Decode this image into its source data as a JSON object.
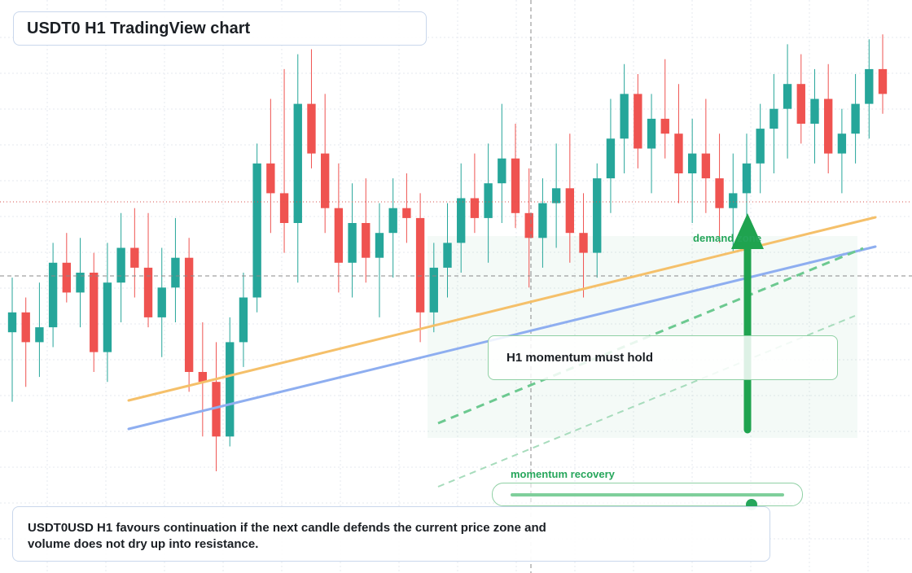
{
  "title": "USDT0 H1 TradingView chart",
  "annotations": {
    "demand_zone_label": "demand zone",
    "momentum_note": "H1 momentum must hold",
    "momentum_slider_label": "momentum recovery",
    "momentum_slider_value": 0.88
  },
  "caption": "USDT0USD H1 favours continuation if the next candle defends the current price zone and volume does not dry up into resistance.",
  "colors": {
    "up": "#26a69a",
    "down": "#ef5350",
    "accent_green": "#26a65b",
    "trend_orange": "#f5c06a",
    "trend_blue": "#8eaef0",
    "price_line": "#d9534f"
  },
  "chart_data": {
    "type": "candlestick",
    "symbol": "USDT0USD",
    "timeframe": "H1",
    "grid": true,
    "y_axis_labels": "none",
    "x_axis_labels": "none",
    "candles_description": "OHLC values are unlabeled; values expressed on a relative 0-100 scale",
    "candles": [
      {
        "o": 38,
        "h": 49,
        "l": 24,
        "c": 42
      },
      {
        "o": 42,
        "h": 45,
        "l": 27,
        "c": 36
      },
      {
        "o": 36,
        "h": 48,
        "l": 29,
        "c": 39
      },
      {
        "o": 39,
        "h": 56,
        "l": 35,
        "c": 52
      },
      {
        "o": 52,
        "h": 58,
        "l": 44,
        "c": 46
      },
      {
        "o": 46,
        "h": 57,
        "l": 39,
        "c": 50
      },
      {
        "o": 50,
        "h": 54,
        "l": 30,
        "c": 34
      },
      {
        "o": 34,
        "h": 56,
        "l": 28,
        "c": 48
      },
      {
        "o": 48,
        "h": 62,
        "l": 40,
        "c": 55
      },
      {
        "o": 55,
        "h": 63,
        "l": 45,
        "c": 51
      },
      {
        "o": 51,
        "h": 62,
        "l": 39,
        "c": 41
      },
      {
        "o": 41,
        "h": 55,
        "l": 33,
        "c": 47
      },
      {
        "o": 47,
        "h": 61,
        "l": 40,
        "c": 53
      },
      {
        "o": 53,
        "h": 57,
        "l": 26,
        "c": 30
      },
      {
        "o": 30,
        "h": 40,
        "l": 17,
        "c": 28
      },
      {
        "o": 28,
        "h": 36,
        "l": 10,
        "c": 17
      },
      {
        "o": 17,
        "h": 41,
        "l": 15,
        "c": 36
      },
      {
        "o": 36,
        "h": 50,
        "l": 31,
        "c": 45
      },
      {
        "o": 45,
        "h": 76,
        "l": 42,
        "c": 72
      },
      {
        "o": 72,
        "h": 85,
        "l": 58,
        "c": 66
      },
      {
        "o": 66,
        "h": 91,
        "l": 54,
        "c": 60
      },
      {
        "o": 60,
        "h": 94,
        "l": 48,
        "c": 84
      },
      {
        "o": 84,
        "h": 95,
        "l": 71,
        "c": 74
      },
      {
        "o": 74,
        "h": 86,
        "l": 58,
        "c": 63
      },
      {
        "o": 63,
        "h": 72,
        "l": 46,
        "c": 52
      },
      {
        "o": 52,
        "h": 68,
        "l": 45,
        "c": 60
      },
      {
        "o": 60,
        "h": 69,
        "l": 48,
        "c": 53
      },
      {
        "o": 53,
        "h": 64,
        "l": 41,
        "c": 58
      },
      {
        "o": 58,
        "h": 69,
        "l": 49,
        "c": 63
      },
      {
        "o": 63,
        "h": 70,
        "l": 56,
        "c": 61
      },
      {
        "o": 61,
        "h": 66,
        "l": 36,
        "c": 42
      },
      {
        "o": 42,
        "h": 56,
        "l": 38,
        "c": 51
      },
      {
        "o": 51,
        "h": 64,
        "l": 45,
        "c": 56
      },
      {
        "o": 56,
        "h": 72,
        "l": 50,
        "c": 65
      },
      {
        "o": 65,
        "h": 74,
        "l": 58,
        "c": 61
      },
      {
        "o": 61,
        "h": 76,
        "l": 52,
        "c": 68
      },
      {
        "o": 68,
        "h": 84,
        "l": 60,
        "c": 73
      },
      {
        "o": 73,
        "h": 80,
        "l": 59,
        "c": 62
      },
      {
        "o": 62,
        "h": 71,
        "l": 47,
        "c": 57
      },
      {
        "o": 57,
        "h": 69,
        "l": 51,
        "c": 64
      },
      {
        "o": 64,
        "h": 76,
        "l": 55,
        "c": 67
      },
      {
        "o": 67,
        "h": 78,
        "l": 52,
        "c": 58
      },
      {
        "o": 58,
        "h": 66,
        "l": 45,
        "c": 54
      },
      {
        "o": 54,
        "h": 72,
        "l": 49,
        "c": 69
      },
      {
        "o": 69,
        "h": 85,
        "l": 62,
        "c": 77
      },
      {
        "o": 77,
        "h": 92,
        "l": 70,
        "c": 86
      },
      {
        "o": 86,
        "h": 90,
        "l": 71,
        "c": 75
      },
      {
        "o": 75,
        "h": 86,
        "l": 66,
        "c": 81
      },
      {
        "o": 81,
        "h": 93,
        "l": 73,
        "c": 78
      },
      {
        "o": 78,
        "h": 88,
        "l": 64,
        "c": 70
      },
      {
        "o": 70,
        "h": 81,
        "l": 60,
        "c": 74
      },
      {
        "o": 74,
        "h": 85,
        "l": 62,
        "c": 69
      },
      {
        "o": 69,
        "h": 78,
        "l": 56,
        "c": 63
      },
      {
        "o": 63,
        "h": 74,
        "l": 54,
        "c": 66
      },
      {
        "o": 66,
        "h": 78,
        "l": 58,
        "c": 72
      },
      {
        "o": 72,
        "h": 84,
        "l": 66,
        "c": 79
      },
      {
        "o": 79,
        "h": 90,
        "l": 70,
        "c": 83
      },
      {
        "o": 83,
        "h": 96,
        "l": 73,
        "c": 88
      },
      {
        "o": 88,
        "h": 94,
        "l": 76,
        "c": 80
      },
      {
        "o": 80,
        "h": 91,
        "l": 72,
        "c": 85
      },
      {
        "o": 85,
        "h": 92,
        "l": 70,
        "c": 74
      },
      {
        "o": 74,
        "h": 83,
        "l": 66,
        "c": 78
      },
      {
        "o": 78,
        "h": 90,
        "l": 72,
        "c": 84
      },
      {
        "o": 84,
        "h": 97,
        "l": 77,
        "c": 91
      },
      {
        "o": 91,
        "h": 98,
        "l": 82,
        "c": 86
      }
    ]
  }
}
